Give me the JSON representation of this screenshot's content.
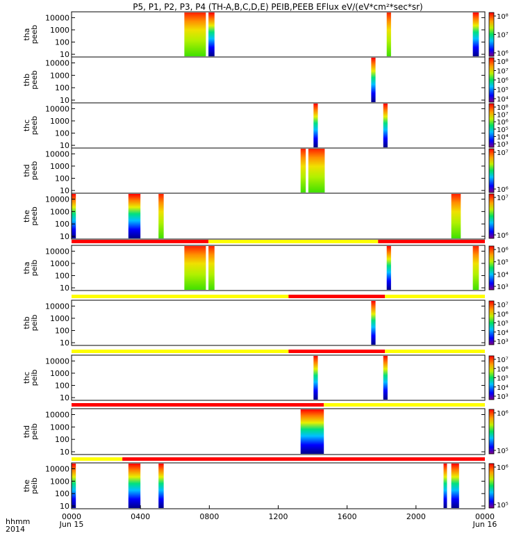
{
  "title": "P5, P1, P2, P3, P4 (TH-A,B,C,D,E) PEIB,PEEB EFlux eV/(eV*cm²*sec*sr)",
  "x_axis": {
    "label_line1": "hhmm",
    "label_line2": "2014",
    "ticks": [
      "0000",
      "0400",
      "0800",
      "1200",
      "1600",
      "2000",
      "0000"
    ],
    "tick_values": [
      0,
      4,
      8,
      12,
      16,
      20,
      24
    ],
    "date_labels": [
      "Jun 15",
      "",
      "",
      "",
      "",
      "",
      "Jun 16"
    ],
    "range": [
      0,
      24
    ],
    "unit": "hours"
  },
  "colors": {
    "mode_yellow": "#ffff00",
    "mode_red": "#ff0000",
    "frame": "#000000"
  },
  "chart_data": [
    {
      "type": "heatmap",
      "ylabel": [
        "tha",
        "peeb"
      ],
      "y_ticks": [
        "10",
        "100",
        "1000",
        "10000"
      ],
      "ylog": true,
      "ylim": [
        6,
        30000
      ],
      "colorbar_ticks": [
        "10⁶",
        "10⁷",
        "10⁸"
      ],
      "colorbar_exponents": [
        6,
        7,
        8
      ],
      "intervals": [
        [
          6.55,
          7.8,
          "green-red"
        ],
        [
          7.95,
          8.3,
          "blue-red"
        ],
        [
          18.3,
          18.55,
          "green-red"
        ],
        [
          23.3,
          23.65,
          "blue-red"
        ]
      ]
    },
    {
      "type": "heatmap",
      "ylabel": [
        "thb",
        "peeb"
      ],
      "y_ticks": [
        "10",
        "100",
        "1000",
        "10000"
      ],
      "ylog": true,
      "ylim": [
        6,
        30000
      ],
      "colorbar_ticks": [
        "10⁴",
        "10⁵",
        "10⁶",
        "10⁷",
        "10⁸"
      ],
      "colorbar_exponents": [
        4,
        5,
        6,
        7,
        8
      ],
      "intervals": [
        [
          17.4,
          17.65,
          "blue-red"
        ]
      ]
    },
    {
      "type": "heatmap",
      "ylabel": [
        "thc",
        "peeb"
      ],
      "y_ticks": [
        "10",
        "100",
        "1000",
        "10000"
      ],
      "ylog": true,
      "ylim": [
        6,
        30000
      ],
      "colorbar_ticks": [
        "10³",
        "10⁴",
        "10⁵",
        "10⁶",
        "10⁷",
        "10⁸"
      ],
      "colorbar_exponents": [
        3,
        4,
        5,
        6,
        7,
        8
      ],
      "intervals": [
        [
          14.05,
          14.3,
          "blue-red"
        ],
        [
          18.1,
          18.35,
          "blue-red"
        ]
      ]
    },
    {
      "type": "heatmap",
      "ylabel": [
        "thd",
        "peeb"
      ],
      "y_ticks": [
        "10",
        "100",
        "1000",
        "10000"
      ],
      "ylog": true,
      "ylim": [
        6,
        30000
      ],
      "colorbar_ticks": [
        "10⁶",
        "10⁷"
      ],
      "colorbar_exponents": [
        6,
        7
      ],
      "intervals": [
        [
          13.3,
          13.6,
          "green-red"
        ],
        [
          13.75,
          14.7,
          "green-red"
        ]
      ]
    },
    {
      "type": "heatmap",
      "ylabel": [
        "the",
        "peeb"
      ],
      "y_ticks": [
        "10",
        "100",
        "1000",
        "10000"
      ],
      "ylog": true,
      "ylim": [
        6,
        30000
      ],
      "colorbar_ticks": [
        "10⁶",
        "10⁷"
      ],
      "colorbar_exponents": [
        6,
        7
      ],
      "intervals": [
        [
          0,
          0.25,
          "blue-red"
        ],
        [
          3.3,
          4.0,
          "blue-red"
        ],
        [
          5.05,
          5.35,
          "green-red"
        ],
        [
          22.05,
          22.6,
          "green-red"
        ]
      ]
    },
    {
      "type": "heatmap",
      "ylabel": [
        "tha",
        "peib"
      ],
      "y_ticks": [
        "10",
        "100",
        "1000",
        "10000"
      ],
      "ylog": true,
      "ylim": [
        6,
        30000
      ],
      "colorbar_ticks": [
        "10³",
        "10⁴",
        "10⁵",
        "10⁶"
      ],
      "colorbar_exponents": [
        3,
        4,
        5,
        6
      ],
      "mode_bar": [
        [
          0,
          7.95,
          "red"
        ],
        [
          7.95,
          17.8,
          "yellow"
        ],
        [
          17.8,
          24,
          "red"
        ]
      ],
      "intervals": [
        [
          6.55,
          7.8,
          "green-red"
        ],
        [
          7.95,
          8.3,
          "green-red"
        ],
        [
          18.3,
          18.55,
          "blue-red"
        ],
        [
          23.3,
          23.65,
          "green-red"
        ]
      ]
    },
    {
      "type": "heatmap",
      "ylabel": [
        "thb",
        "peib"
      ],
      "y_ticks": [
        "10",
        "100",
        "1000",
        "10000"
      ],
      "ylog": true,
      "ylim": [
        6,
        30000
      ],
      "colorbar_ticks": [
        "10³",
        "10⁴",
        "10⁵",
        "10⁶",
        "10⁷"
      ],
      "colorbar_exponents": [
        3,
        4,
        5,
        6,
        7
      ],
      "mode_bar": [
        [
          0,
          12.6,
          "yellow"
        ],
        [
          12.6,
          18.2,
          "red"
        ],
        [
          18.2,
          24,
          "yellow"
        ]
      ],
      "intervals": [
        [
          17.4,
          17.65,
          "blue-red"
        ]
      ]
    },
    {
      "type": "heatmap",
      "ylabel": [
        "thc",
        "peib"
      ],
      "y_ticks": [
        "10",
        "100",
        "1000",
        "10000"
      ],
      "ylog": true,
      "ylim": [
        6,
        30000
      ],
      "colorbar_ticks": [
        "10³",
        "10⁴",
        "10⁵",
        "10⁶",
        "10⁷"
      ],
      "colorbar_exponents": [
        3,
        4,
        5,
        6,
        7
      ],
      "mode_bar": [
        [
          0,
          12.6,
          "yellow"
        ],
        [
          12.6,
          18.2,
          "red"
        ],
        [
          18.2,
          24,
          "yellow"
        ]
      ],
      "intervals": [
        [
          14.05,
          14.3,
          "blue-red"
        ],
        [
          18.1,
          18.35,
          "blue-red"
        ]
      ]
    },
    {
      "type": "heatmap",
      "ylabel": [
        "thd",
        "peib"
      ],
      "y_ticks": [
        "10",
        "100",
        "1000",
        "10000"
      ],
      "ylog": true,
      "ylim": [
        6,
        30000
      ],
      "colorbar_ticks": [
        "10⁵",
        "10⁶"
      ],
      "colorbar_exponents": [
        5,
        6
      ],
      "mode_bar": [
        [
          0,
          14.65,
          "red"
        ],
        [
          14.65,
          24,
          "yellow"
        ]
      ],
      "intervals": [
        [
          13.3,
          14.65,
          "blue-red"
        ]
      ]
    },
    {
      "type": "heatmap",
      "ylabel": [
        "the",
        "peib"
      ],
      "y_ticks": [
        "10",
        "100",
        "1000",
        "10000"
      ],
      "ylog": true,
      "ylim": [
        6,
        30000
      ],
      "colorbar_ticks": [
        "10⁵",
        "10⁶"
      ],
      "colorbar_exponents": [
        5,
        6
      ],
      "mode_bar": [
        [
          0,
          2.95,
          "yellow"
        ],
        [
          2.95,
          24,
          "red"
        ]
      ],
      "intervals": [
        [
          0,
          0.25,
          "blue-red"
        ],
        [
          3.3,
          4.0,
          "blue-red"
        ],
        [
          5.05,
          5.35,
          "blue-red"
        ],
        [
          21.6,
          21.8,
          "blue-red"
        ],
        [
          22.05,
          22.5,
          "blue-red"
        ]
      ]
    }
  ]
}
